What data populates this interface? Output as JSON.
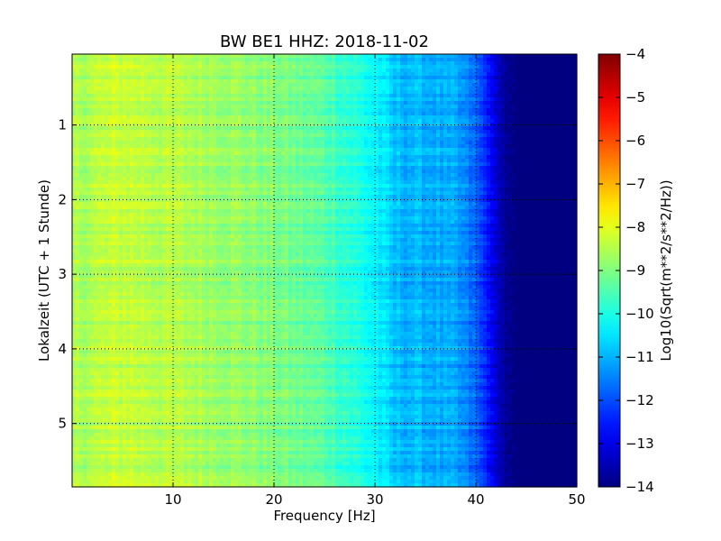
{
  "chart_data": {
    "type": "heatmap",
    "title": "BW BE1 HHZ: 2018-11-02",
    "xlabel": "Frequency [Hz]",
    "ylabel": "Lokalzeit (UTC + 1 Stunde)",
    "xlim": [
      0,
      50
    ],
    "ylim": [
      5.85,
      0.05
    ],
    "y_inverted": true,
    "grid": true,
    "x_ticks": [
      10,
      20,
      30,
      40,
      50
    ],
    "x_tick_labels": [
      "10",
      "20",
      "30",
      "40",
      "50"
    ],
    "y_ticks": [
      1,
      2,
      3,
      4,
      5
    ],
    "y_tick_labels": [
      "1",
      "2",
      "3",
      "4",
      "5"
    ],
    "colormap": "jet",
    "colorbar": {
      "label": "Log10(Sqrt(m**2/s**2/Hz))",
      "range": [
        -14,
        -4
      ],
      "ticks": [
        -4,
        -5,
        -6,
        -7,
        -8,
        -9,
        -10,
        -11,
        -12,
        -13,
        -14
      ],
      "tick_labels": [
        "−4",
        "−5",
        "−6",
        "−7",
        "−8",
        "−9",
        "−10",
        "−11",
        "−12",
        "−13",
        "−14"
      ]
    },
    "spectral_profile": {
      "frequency_hz": [
        0,
        5,
        10,
        15,
        20,
        25,
        28,
        30,
        31,
        32,
        35,
        38,
        40,
        41,
        42,
        43,
        44,
        50
      ],
      "log10_amplitude": [
        -8.6,
        -8.3,
        -8.5,
        -8.7,
        -9.0,
        -9.4,
        -9.9,
        -10.3,
        -10.6,
        -10.9,
        -11.0,
        -11.2,
        -11.8,
        -12.4,
        -13.2,
        -13.8,
        -14.0,
        -14.0
      ]
    }
  }
}
